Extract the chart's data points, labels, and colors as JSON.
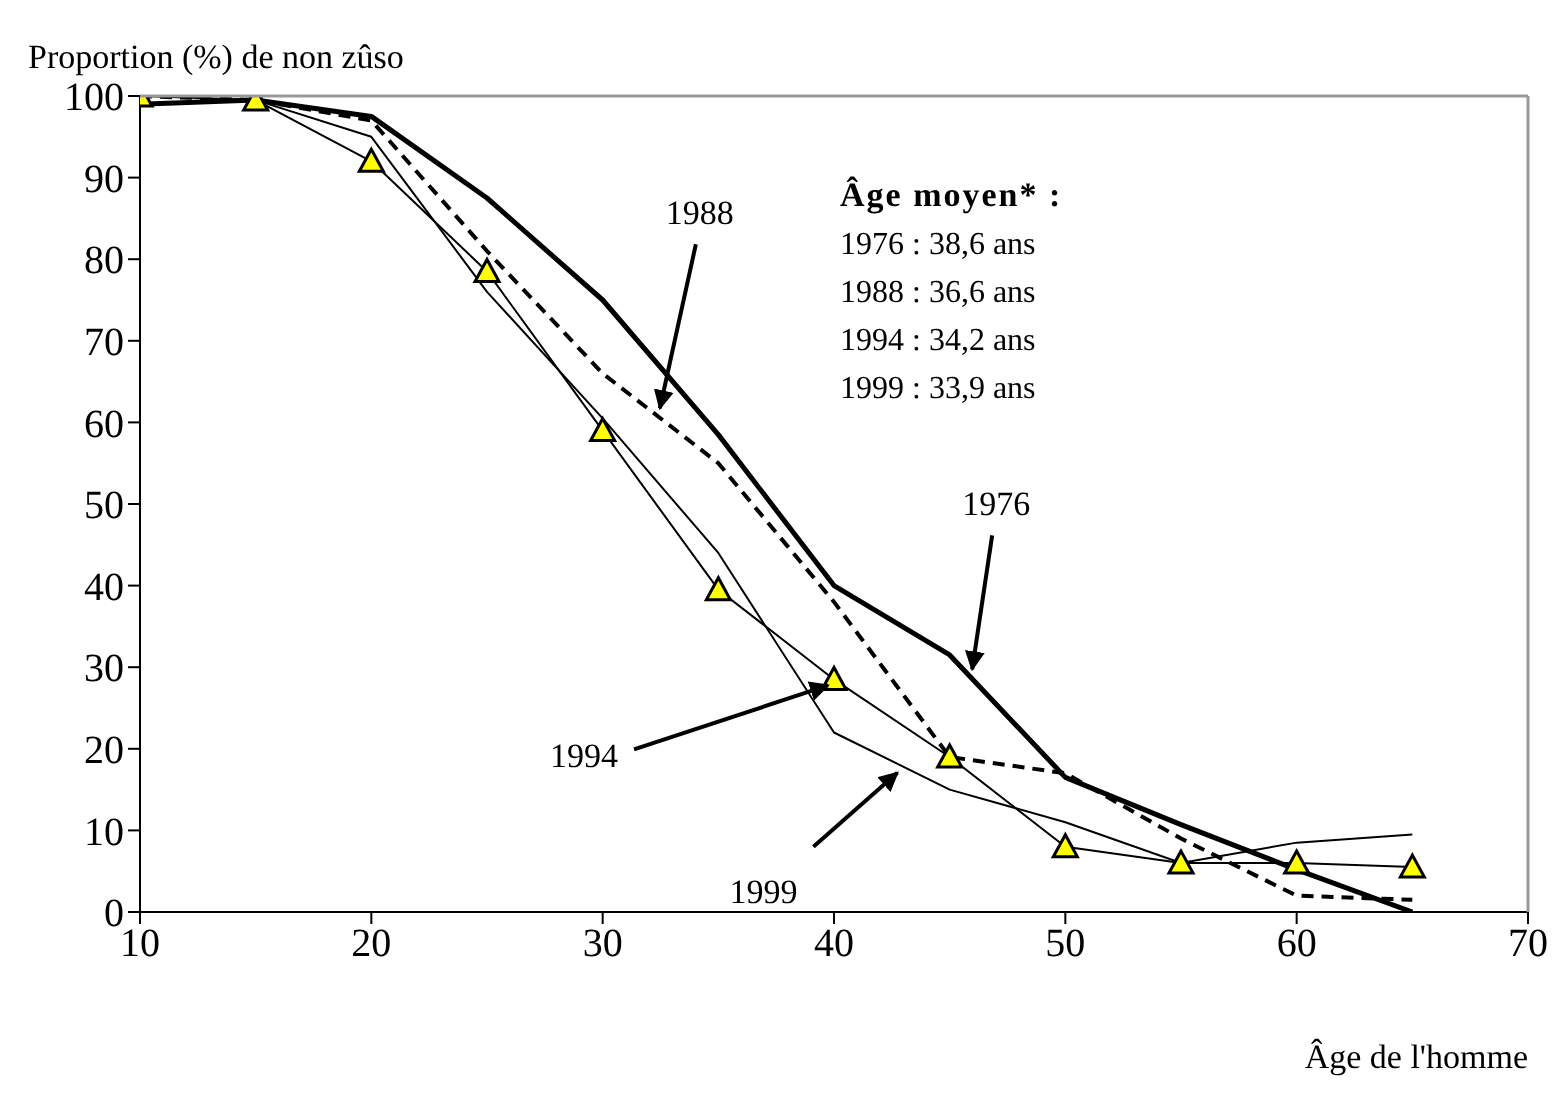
{
  "chart_data": {
    "type": "line",
    "ylabel": "Proportion (%) de non zûso",
    "xlabel": "Âge de l'homme",
    "x": [
      10,
      15,
      20,
      25,
      30,
      35,
      40,
      45,
      50,
      55,
      60,
      65
    ],
    "xlim": [
      10,
      70
    ],
    "xticks": [
      10,
      20,
      30,
      40,
      50,
      60,
      70
    ],
    "ylim": [
      0,
      100
    ],
    "yticks": [
      0,
      10,
      20,
      30,
      40,
      50,
      60,
      70,
      80,
      90,
      100
    ],
    "grid": false,
    "series": [
      {
        "color": "#000000",
        "marker": "none",
        "line_style": "solid",
        "values": [
          99,
          99.5,
          97.5,
          87.5,
          75,
          58.5,
          40,
          31.5,
          16.5,
          10.7,
          5.2,
          0
        ]
      },
      {
        "color": "#000000",
        "marker": "none",
        "line_style": "dashed",
        "values": [
          100,
          99.5,
          97,
          81,
          66,
          55,
          38,
          19,
          17,
          9,
          2,
          1.5
        ]
      },
      {
        "color": "#000000",
        "marker": "triangle",
        "line_style": "solid",
        "values": [
          100,
          99.5,
          92,
          78.5,
          59,
          39.5,
          28.5,
          19,
          8,
          6,
          6,
          5.5
        ]
      },
      {
        "color": "#000000",
        "marker": "none",
        "line_style": "solid",
        "values": [
          null,
          99.5,
          95,
          76,
          60.5,
          44,
          22,
          15,
          11,
          6,
          8.5,
          9.5
        ]
      }
    ],
    "annotations": [
      "Âge moyen* :",
      "1976 : 38,6 ans",
      "1988 : 36,6 ans",
      "1994 : 34,2 ans",
      "1999 : 33,9 ans",
      {
        "text": "1976",
        "x": 45.8,
        "y": 29
      },
      {
        "text": "1988",
        "x": 32.3,
        "y": 61
      },
      {
        "text": "1994",
        "x": 40,
        "y": 28.5
      },
      {
        "text": "1999",
        "x": 43,
        "y": 17.8
      }
    ]
  }
}
